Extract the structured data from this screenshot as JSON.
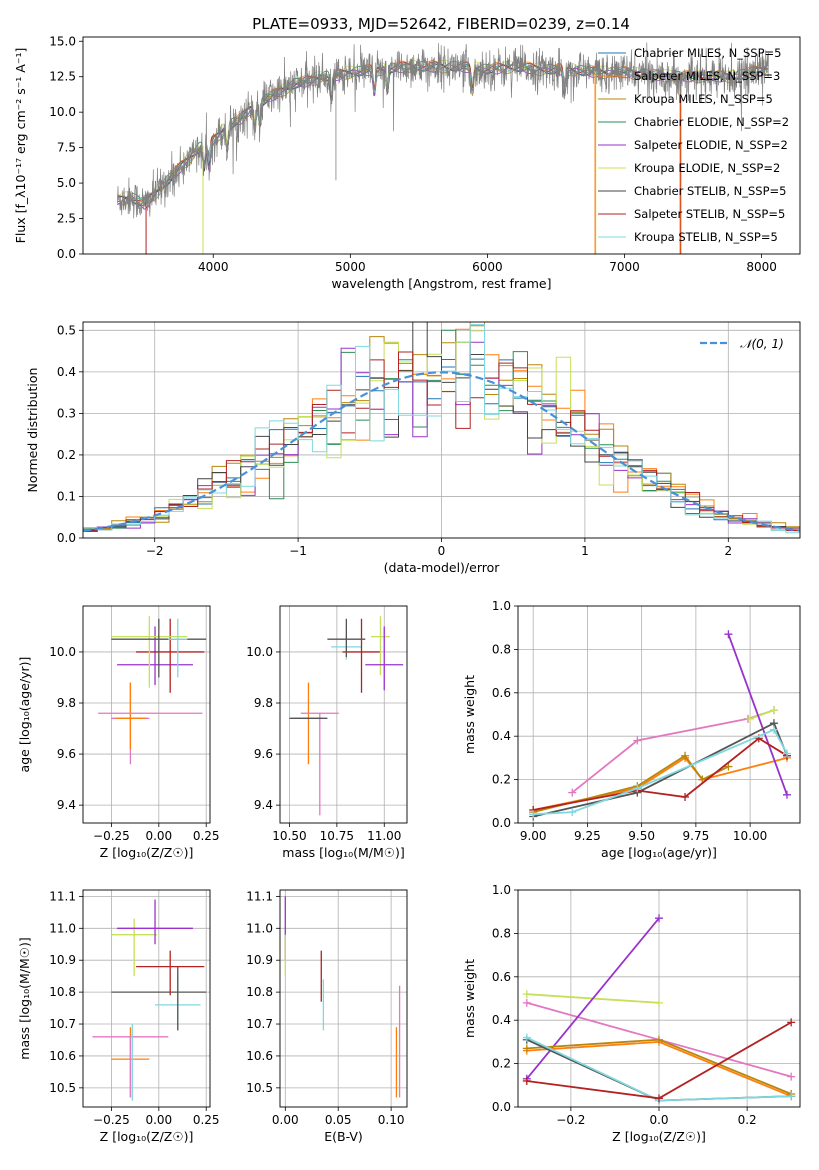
{
  "page": {
    "title": "PLATE=0933, MJD=52642, FIBERID=0239, z=0.14"
  },
  "chart_data": [
    {
      "type": "line",
      "xlabel": "wavelength [Angstrom, rest frame]",
      "ylabel": "Flux [f_λ10⁻¹⁷ erg cm⁻² s⁻¹ A⁻¹]",
      "xlim": [
        3050,
        8280
      ],
      "ylim": [
        0,
        15.3
      ],
      "xticks": [
        4000,
        5000,
        6000,
        7000,
        8000
      ],
      "yticks": [
        0.0,
        2.5,
        5.0,
        7.5,
        10.0,
        12.5,
        15.0
      ],
      "xtick_labels": [
        "4000",
        "5000",
        "6000",
        "7000",
        "8000"
      ],
      "ytick_labels": [
        "0.0",
        "2.5",
        "5.0",
        "7.5",
        "10.0",
        "12.5",
        "15.0"
      ],
      "legend_position": "top-right",
      "grid": false,
      "series": [
        {
          "name": "Chabrier MILES, N_SSP=5",
          "color": "#1f77b4"
        },
        {
          "name": "Salpeter MILES, N_SSP=3",
          "color": "#ff7f0e"
        },
        {
          "name": "Kroupa MILES, N_SSP=5",
          "color": "#b8860b"
        },
        {
          "name": "Chabrier ELODIE, N_SSP=2",
          "color": "#2e8b57"
        },
        {
          "name": "Salpeter ELODIE, N_SSP=2",
          "color": "#9932cc"
        },
        {
          "name": "Kroupa ELODIE, N_SSP=2",
          "color": "#d4e157"
        },
        {
          "name": "Chabrier STELIB, N_SSP=5",
          "color": "#444444"
        },
        {
          "name": "Salpeter STELIB, N_SSP=5",
          "color": "#b22222"
        },
        {
          "name": "Kroupa STELIB, N_SSP=5",
          "color": "#7fd8e0"
        }
      ],
      "observed_color": "#808080",
      "continuum": {
        "x": [
          3300,
          3400,
          3500,
          3600,
          3700,
          3800,
          3900,
          4000,
          4100,
          4200,
          4300,
          4400,
          4500,
          4600,
          4700,
          4800,
          4900,
          5000,
          5200,
          5400,
          5600,
          5800,
          6000,
          6200,
          6400,
          6600,
          6800,
          7000,
          7200,
          7400,
          7600,
          7800,
          8000,
          8050
        ],
        "y": [
          3.8,
          4.0,
          3.5,
          4.5,
          5.5,
          6.5,
          7.5,
          8.0,
          9.0,
          9.5,
          10.5,
          11.0,
          11.5,
          12.0,
          12.2,
          12.5,
          12.6,
          12.8,
          13.0,
          13.2,
          13.2,
          13.2,
          13.0,
          13.2,
          13.0,
          13.0,
          12.8,
          12.8,
          12.6,
          12.5,
          12.5,
          12.5,
          13.0,
          13.2
        ]
      }
    },
    {
      "type": "line",
      "xlabel": "(data-model)/error",
      "ylabel": "Normed distribution",
      "xlim": [
        -2.5,
        2.5
      ],
      "ylim": [
        0,
        0.52
      ],
      "xticks": [
        -2,
        -1,
        0,
        1,
        2
      ],
      "yticks": [
        0.0,
        0.1,
        0.2,
        0.3,
        0.4,
        0.5
      ],
      "xtick_labels": [
        "−2",
        "−1",
        "0",
        "1",
        "2"
      ],
      "ytick_labels": [
        "0.0",
        "0.1",
        "0.2",
        "0.3",
        "0.4",
        "0.5"
      ],
      "grid": true,
      "legend": "𝒩(0, 1)",
      "legend_position": "top-right",
      "curve_color": "#4a90d9",
      "bin_width": 0.1
    },
    {
      "type": "scatter",
      "xlabel": "Z [log₁₀(Z/Z☉)]",
      "ylabel": "age  [log₁₀(age/yr)]",
      "xlim": [
        -0.4,
        0.27
      ],
      "ylim": [
        9.33,
        10.18
      ],
      "xticks": [
        -0.25,
        0.0,
        0.25
      ],
      "xtick_labels": [
        "−0.25",
        "0.00",
        "0.25"
      ],
      "yticks": [
        9.4,
        9.6,
        9.8,
        10.0
      ],
      "ytick_labels": [
        "9.4",
        "9.6",
        "9.8",
        "10.0"
      ],
      "grid": true,
      "points": [
        {
          "x": -0.15,
          "y": 9.74,
          "xerr": 0.1,
          "yerr": [
            0.18,
            0.14
          ],
          "color": "#e377c2"
        },
        {
          "x": -0.15,
          "y": 9.74,
          "xerr": 0.08,
          "yerr": [
            0.12,
            0.14
          ],
          "color": "#ff7f0e"
        },
        {
          "x": -0.32,
          "y": 9.76,
          "xerr": 0.0,
          "yerr": 0.0,
          "color": "#e377c2",
          "xerr_pos": 0.55
        },
        {
          "x": -0.02,
          "y": 9.95,
          "xerr": 0.2,
          "yerr": [
            0.08,
            0.15
          ],
          "color": "#9932cc"
        },
        {
          "x": 0.06,
          "y": 10.0,
          "xerr": 0.18,
          "yerr": [
            0.16,
            0.13
          ],
          "color": "#b22222"
        },
        {
          "x": -0.05,
          "y": 10.06,
          "xerr": 0.2,
          "yerr": [
            0.2,
            0.08
          ],
          "color": "#c5e05a"
        },
        {
          "x": 0.0,
          "y": 10.05,
          "xerr": 0.25,
          "yerr": [
            0.15,
            0.08
          ],
          "color": "#555555"
        },
        {
          "x": 0.1,
          "y": 10.05,
          "xerr": 0.05,
          "yerr": [
            0.15,
            0.08
          ],
          "color": "#7fd8e0"
        }
      ]
    },
    {
      "type": "scatter",
      "xlabel": "mass [log₁₀(M/M☉)]",
      "ylabel": "",
      "xlim": [
        10.45,
        11.12
      ],
      "ylim": [
        9.33,
        10.18
      ],
      "xticks": [
        10.5,
        10.75,
        11.0
      ],
      "xtick_labels": [
        "10.50",
        "10.75",
        "11.00"
      ],
      "yticks": [
        9.4,
        9.6,
        9.8,
        10.0
      ],
      "ytick_labels": [
        "9.4",
        "9.6",
        "9.8",
        "10.0"
      ],
      "grid": true,
      "points": [
        {
          "x": 10.6,
          "y": 9.74,
          "xerr": 0.08,
          "yerr": [
            0.18,
            0.14
          ],
          "color": "#ff7f0e"
        },
        {
          "x": 10.66,
          "y": 9.76,
          "xerr": 0.1,
          "yerr": [
            0.4,
            0.0
          ],
          "color": "#e377c2"
        },
        {
          "x": 10.6,
          "y": 9.74,
          "xerr": 0.1,
          "yerr": 0.0,
          "color": "#555555"
        },
        {
          "x": 10.8,
          "y": 10.02,
          "xerr": 0.08,
          "yerr": [
            0.05,
            0.05
          ],
          "color": "#7fd8e0"
        },
        {
          "x": 10.88,
          "y": 10.0,
          "xerr": 0.1,
          "yerr": [
            0.16,
            0.13
          ],
          "color": "#b22222"
        },
        {
          "x": 10.8,
          "y": 10.05,
          "xerr": 0.1,
          "yerr": [
            0.07,
            0.08
          ],
          "color": "#555555"
        },
        {
          "x": 10.98,
          "y": 10.06,
          "xerr": 0.05,
          "yerr": [
            0.15,
            0.08
          ],
          "color": "#c5e05a"
        },
        {
          "x": 11.0,
          "y": 9.95,
          "xerr": 0.1,
          "yerr": [
            0.1,
            0.15
          ],
          "color": "#9932cc"
        }
      ]
    },
    {
      "type": "line",
      "xlabel": "age  [log₁₀(age/yr)]",
      "ylabel": "mass weight",
      "xlim": [
        8.93,
        10.23
      ],
      "ylim": [
        0,
        1
      ],
      "xticks": [
        9.0,
        9.25,
        9.5,
        9.75,
        10.0
      ],
      "xtick_labels": [
        "9.00",
        "9.25",
        "9.50",
        "9.75",
        "10.00"
      ],
      "yticks": [
        0,
        0.2,
        0.4,
        0.6,
        0.8,
        1.0
      ],
      "ytick_labels": [
        "0.0",
        "0.2",
        "0.4",
        "0.6",
        "0.8",
        "1.0"
      ],
      "grid": true,
      "series": [
        {
          "color": "#e377c2",
          "x": [
            9.18,
            9.48,
            9.99,
            10.11
          ],
          "y": [
            0.14,
            0.38,
            0.48,
            0.52
          ]
        },
        {
          "color": "#ff7f0e",
          "x": [
            9.0,
            9.48,
            9.7,
            9.78,
            10.17
          ],
          "y": [
            0.06,
            0.16,
            0.3,
            0.2,
            0.3
          ]
        },
        {
          "color": "#b8860b",
          "x": [
            9.0,
            9.48,
            9.7,
            9.78,
            9.9
          ],
          "y": [
            0.05,
            0.17,
            0.31,
            0.2,
            0.26
          ]
        },
        {
          "color": "#c5e05a",
          "x": [
            10.0,
            10.11
          ],
          "y": [
            0.48,
            0.52
          ]
        },
        {
          "color": "#9932cc",
          "x": [
            9.9,
            10.17
          ],
          "y": [
            0.87,
            0.13
          ]
        },
        {
          "color": "#555555",
          "x": [
            9.0,
            9.48,
            10.11,
            10.17
          ],
          "y": [
            0.03,
            0.14,
            0.46,
            0.31
          ]
        },
        {
          "color": "#b22222",
          "x": [
            9.0,
            9.48,
            9.7,
            10.04,
            10.17
          ],
          "y": [
            0.06,
            0.15,
            0.12,
            0.39,
            0.31
          ]
        },
        {
          "color": "#7fd8e0",
          "x": [
            9.0,
            9.18,
            9.48,
            10.11,
            10.17
          ],
          "y": [
            0.04,
            0.05,
            0.16,
            0.43,
            0.32
          ]
        }
      ]
    },
    {
      "type": "scatter",
      "xlabel": "Z [log₁₀(Z/Z☉)]",
      "ylabel": "mass [log₁₀(M/M☉)]",
      "xlim": [
        -0.4,
        0.27
      ],
      "ylim": [
        10.44,
        11.12
      ],
      "xticks": [
        -0.25,
        0.0,
        0.25
      ],
      "xtick_labels": [
        "−0.25",
        "0.00",
        "0.25"
      ],
      "yticks": [
        10.5,
        10.6,
        10.7,
        10.8,
        10.9,
        11.0,
        11.1
      ],
      "ytick_labels": [
        "10.5",
        "10.6",
        "10.7",
        "10.8",
        "10.9",
        "11.0",
        "11.1"
      ],
      "grid": true,
      "points": [
        {
          "x": -0.15,
          "y": 10.59,
          "xerr": 0.1,
          "yerr": [
            0.12,
            0.1
          ],
          "color": "#ff7f0e"
        },
        {
          "x": -0.15,
          "y": 10.66,
          "xerr": 0.2,
          "yerr": [
            0.19,
            0.0
          ],
          "color": "#e377c2"
        },
        {
          "x": -0.14,
          "y": 10.6,
          "xerr": 0.0,
          "yerr": [
            0.14,
            0.1
          ],
          "color": "#7fd8e0"
        },
        {
          "x": 0.1,
          "y": 10.76,
          "xerr": 0.12,
          "yerr": [
            0.08,
            0.1
          ],
          "color": "#7fd8e0"
        },
        {
          "x": 0.0,
          "y": 10.8,
          "xerr": 0.25,
          "yerr": 0.0,
          "color": "#555555"
        },
        {
          "x": 0.1,
          "y": 10.8,
          "xerr": 0.0,
          "yerr": [
            0.12,
            0.08
          ],
          "color": "#555555"
        },
        {
          "x": 0.06,
          "y": 10.88,
          "xerr": 0.18,
          "yerr": [
            0.09,
            0.05
          ],
          "color": "#b22222"
        },
        {
          "x": -0.13,
          "y": 10.98,
          "xerr": 0.12,
          "yerr": [
            0.13,
            0.05
          ],
          "color": "#c5e05a"
        },
        {
          "x": -0.02,
          "y": 11.0,
          "xerr": 0.2,
          "yerr": [
            0.05,
            0.09
          ],
          "color": "#9932cc"
        }
      ]
    },
    {
      "type": "scatter",
      "xlabel": "E(B-V)",
      "ylabel": "",
      "xlim": [
        -0.005,
        0.115
      ],
      "ylim": [
        10.44,
        11.12
      ],
      "xticks": [
        0.0,
        0.05,
        0.1
      ],
      "xtick_labels": [
        "0.00",
        "0.05",
        "0.10"
      ],
      "yticks": [
        10.5,
        10.6,
        10.7,
        10.8,
        10.9,
        11.0,
        11.1
      ],
      "ytick_labels": [
        "10.5",
        "10.6",
        "10.7",
        "10.8",
        "10.9",
        "11.0",
        "11.1"
      ],
      "grid": true,
      "points": [
        {
          "x": 0.0,
          "y": 11.0,
          "xerr": 0.0,
          "yerr": [
            0.1,
            0.1
          ],
          "color": "#9932cc"
        },
        {
          "x": 0.0,
          "y": 10.92,
          "xerr": 0.0,
          "yerr": [
            0.07,
            0.06
          ],
          "color": "#c5e05a"
        },
        {
          "x": 0.034,
          "y": 10.85,
          "xerr": 0.0,
          "yerr": [
            0.08,
            0.08
          ],
          "color": "#b22222"
        },
        {
          "x": 0.036,
          "y": 10.76,
          "xerr": 0.0,
          "yerr": [
            0.08,
            0.08
          ],
          "color": "#7fd8e0"
        },
        {
          "x": 0.105,
          "y": 10.59,
          "xerr": 0.0,
          "yerr": [
            0.12,
            0.1
          ],
          "color": "#ff7f0e"
        },
        {
          "x": 0.108,
          "y": 10.66,
          "xerr": 0.0,
          "yerr": [
            0.19,
            0.16
          ],
          "color": "#e377c2"
        }
      ]
    },
    {
      "type": "line",
      "xlabel": "Z [log₁₀(Z/Z☉)]",
      "ylabel": "mass weight",
      "xlim": [
        -0.32,
        0.32
      ],
      "ylim": [
        0,
        1
      ],
      "xticks": [
        -0.2,
        0.0,
        0.2
      ],
      "xtick_labels": [
        "−0.2",
        "0.0",
        "0.2"
      ],
      "yticks": [
        0,
        0.2,
        0.4,
        0.6,
        0.8,
        1.0
      ],
      "ytick_labels": [
        "0.0",
        "0.2",
        "0.4",
        "0.6",
        "0.8",
        "1.0"
      ],
      "grid": true,
      "series": [
        {
          "color": "#c5e05a",
          "x": [
            -0.3,
            0.0
          ],
          "y": [
            0.52,
            0.48
          ]
        },
        {
          "color": "#e377c2",
          "x": [
            -0.3,
            0.3
          ],
          "y": [
            0.48,
            0.14
          ]
        },
        {
          "color": "#9932cc",
          "x": [
            -0.3,
            0.0
          ],
          "y": [
            0.13,
            0.87
          ]
        },
        {
          "color": "#ff7f0e",
          "x": [
            -0.3,
            0.0,
            0.3
          ],
          "y": [
            0.26,
            0.3,
            0.05
          ]
        },
        {
          "color": "#b8860b",
          "x": [
            -0.3,
            0.0,
            0.3
          ],
          "y": [
            0.27,
            0.31,
            0.06
          ]
        },
        {
          "color": "#555555",
          "x": [
            -0.3,
            0.0,
            0.3
          ],
          "y": [
            0.31,
            0.03,
            0.05
          ]
        },
        {
          "color": "#7fd8e0",
          "x": [
            -0.3,
            0.0,
            0.3
          ],
          "y": [
            0.32,
            0.03,
            0.05
          ]
        },
        {
          "color": "#b22222",
          "x": [
            -0.3,
            0.0,
            0.3
          ],
          "y": [
            0.12,
            0.04,
            0.39
          ]
        }
      ]
    }
  ]
}
